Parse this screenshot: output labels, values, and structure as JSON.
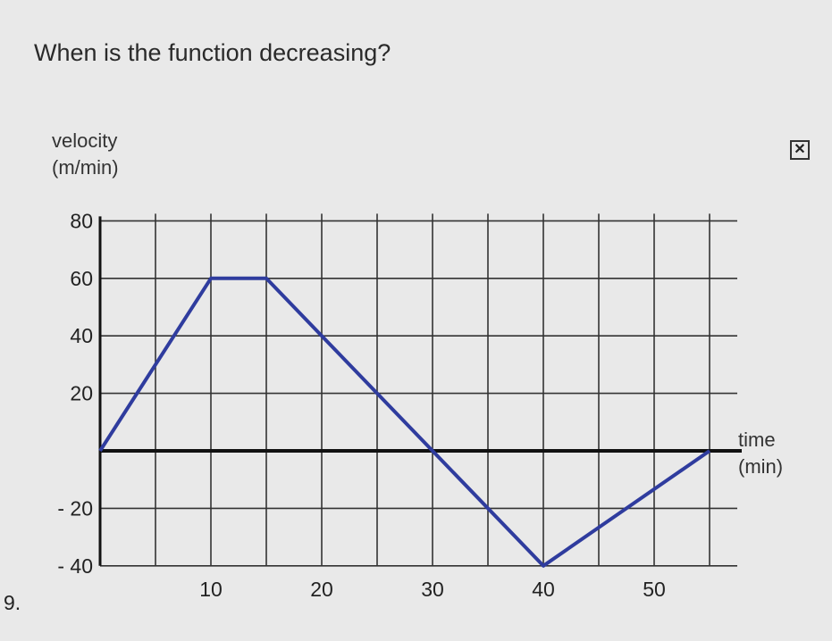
{
  "question": "When is the function decreasing?",
  "problem_number": "9.",
  "close_icon": "close-box-icon",
  "chart_data": {
    "type": "line",
    "title": "",
    "ylabel": [
      "velocity",
      "(m/min)"
    ],
    "xlabel": [
      "time",
      "(min)"
    ],
    "x": [
      0,
      10,
      15,
      30,
      40,
      55
    ],
    "y": [
      0,
      60,
      60,
      0,
      -40,
      0
    ],
    "xlim": [
      0,
      57.5
    ],
    "ylim": [
      -40,
      80
    ],
    "xticks": [
      10,
      20,
      30,
      40,
      50
    ],
    "yticks": [
      80,
      60,
      40,
      20,
      -20,
      -40
    ],
    "ytick_labels": [
      "80",
      "60",
      "40",
      "20",
      "- 20",
      "- 40"
    ],
    "grid": true,
    "line_color": "#2f3c9e"
  }
}
